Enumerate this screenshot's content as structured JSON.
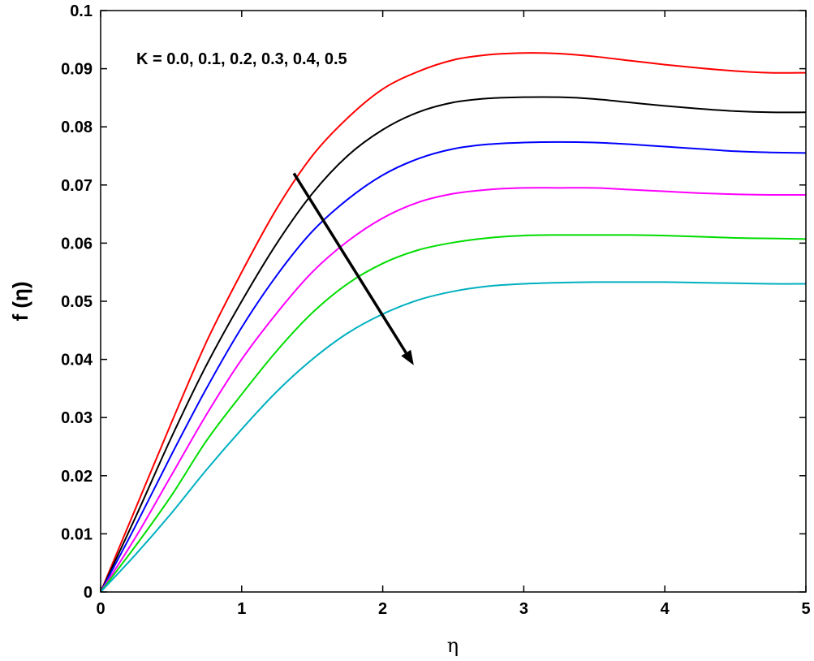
{
  "chart_data": {
    "type": "line",
    "xlabel": "η",
    "ylabel": "f (η)",
    "xlim": [
      0,
      5
    ],
    "ylim": [
      0,
      0.1
    ],
    "xticks": [
      "0",
      "1",
      "2",
      "3",
      "4",
      "5"
    ],
    "yticks": [
      "0",
      "0.01",
      "0.02",
      "0.03",
      "0.04",
      "0.05",
      "0.06",
      "0.07",
      "0.08",
      "0.09",
      "0.1"
    ],
    "annotation": "K = 0.0, 0.1, 0.2, 0.3, 0.4, 0.5",
    "arrow": {
      "from": [
        1.37,
        0.072
      ],
      "to": [
        2.22,
        0.039
      ]
    },
    "x": [
      0,
      0.25,
      0.5,
      0.75,
      1.0,
      1.25,
      1.5,
      1.75,
      2.0,
      2.25,
      2.5,
      2.75,
      3.0,
      3.25,
      3.5,
      3.75,
      4.0,
      4.25,
      4.5,
      4.75,
      5.0
    ],
    "series": [
      {
        "color": "#ff0000",
        "values": [
          0,
          0.0145,
          0.029,
          0.043,
          0.055,
          0.066,
          0.075,
          0.0815,
          0.0865,
          0.0895,
          0.0915,
          0.0924,
          0.0927,
          0.0926,
          0.0921,
          0.0914,
          0.0907,
          0.0901,
          0.0896,
          0.0893,
          0.0893
        ]
      },
      {
        "color": "#000000",
        "values": [
          0,
          0.013,
          0.0265,
          0.039,
          0.05,
          0.06,
          0.0685,
          0.075,
          0.0795,
          0.0825,
          0.0842,
          0.0849,
          0.0851,
          0.0851,
          0.0848,
          0.0842,
          0.0836,
          0.0831,
          0.0827,
          0.0825,
          0.0825
        ]
      },
      {
        "color": "#0000ff",
        "values": [
          0,
          0.0115,
          0.0235,
          0.035,
          0.0455,
          0.0545,
          0.062,
          0.0675,
          0.0717,
          0.0745,
          0.0762,
          0.077,
          0.0773,
          0.0774,
          0.0773,
          0.077,
          0.0766,
          0.0762,
          0.0758,
          0.0756,
          0.0755
        ]
      },
      {
        "color": "#ff00ff",
        "values": [
          0,
          0.0095,
          0.02,
          0.0305,
          0.04,
          0.048,
          0.055,
          0.0603,
          0.0643,
          0.067,
          0.0685,
          0.0692,
          0.0695,
          0.0695,
          0.0695,
          0.0692,
          0.0689,
          0.0686,
          0.0684,
          0.0683,
          0.0683
        ]
      },
      {
        "color": "#00dd00",
        "values": [
          0,
          0.008,
          0.0165,
          0.026,
          0.034,
          0.0415,
          0.048,
          0.053,
          0.0565,
          0.0588,
          0.0601,
          0.0609,
          0.0613,
          0.0614,
          0.0614,
          0.0614,
          0.0613,
          0.0611,
          0.0609,
          0.0608,
          0.0607
        ]
      },
      {
        "color": "#00b0c0",
        "values": [
          0,
          0.0065,
          0.0135,
          0.021,
          0.028,
          0.0345,
          0.04,
          0.0445,
          0.0478,
          0.0502,
          0.0517,
          0.0526,
          0.053,
          0.0532,
          0.0533,
          0.0533,
          0.0533,
          0.0532,
          0.0531,
          0.053,
          0.053
        ]
      }
    ]
  }
}
